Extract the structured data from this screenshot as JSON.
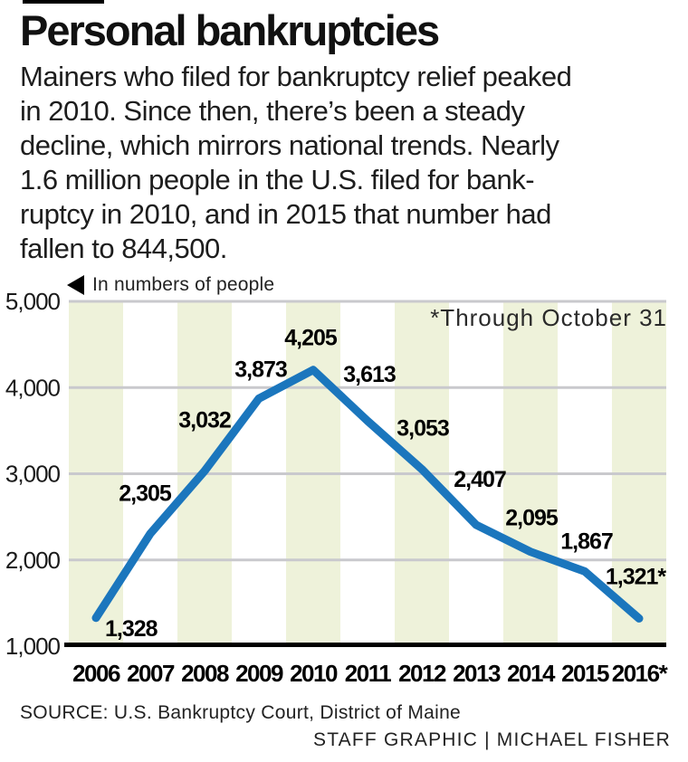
{
  "page": {
    "title": "Personal bankruptcies",
    "intro_lines": [
      "Mainers who filed for bankruptcy relief peaked",
      "in 2010. Since then, there’s been a steady",
      "decline, which mirrors national trends. Nearly",
      "1.6 million people in the U.S. filed for bank-",
      "ruptcy in 2010, and in 2015 that number had",
      "fallen to 844,500."
    ],
    "unit_note": "In numbers of people",
    "source": "SOURCE: U.S. Bankruptcy Court, District of Maine",
    "credit": "STAFF GRAPHIC | MICHAEL FISHER"
  },
  "chart_data": {
    "type": "line",
    "title": "Personal bankruptcies",
    "ylabel": "In numbers of people",
    "xlabel": "",
    "categories": [
      "2006",
      "2007",
      "2008",
      "2009",
      "2010",
      "2011",
      "2012",
      "2013",
      "2014",
      "2015",
      "2016*"
    ],
    "values": [
      1328,
      2305,
      3032,
      3873,
      4205,
      3613,
      3053,
      2407,
      2095,
      1867,
      1321
    ],
    "point_labels": [
      "1,328",
      "2,305",
      "3,032",
      "3,873",
      "4,205",
      "3,613",
      "3,053",
      "2,407",
      "2,095",
      "1,867",
      "1,321*"
    ],
    "y_ticks": [
      5000,
      4000,
      3000,
      2000,
      1000
    ],
    "y_tick_labels": [
      "5,000",
      "4,000",
      "3,000",
      "2,000",
      "1,000"
    ],
    "ylim": [
      1000,
      5000
    ],
    "annotation": "*Through October 31",
    "grid": true,
    "legend_position": "top-left",
    "colors": {
      "line": "#1b76bd",
      "band": "#eef2da",
      "grid": "#c9c9cd",
      "axis": "#000000"
    }
  }
}
